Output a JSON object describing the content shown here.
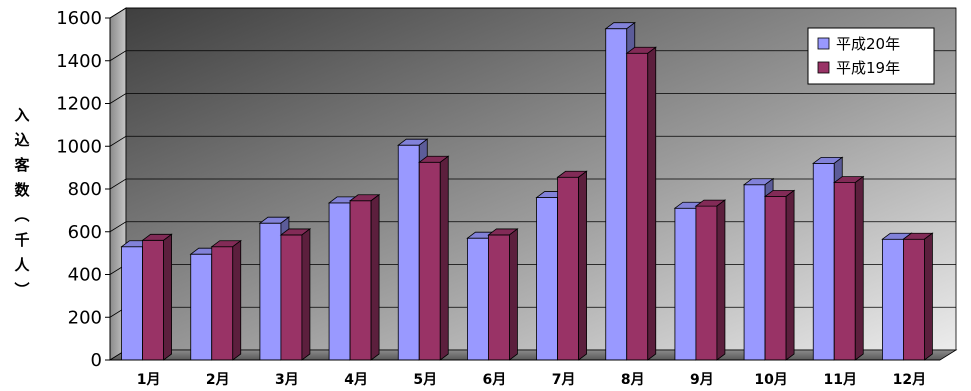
{
  "chart_data": {
    "type": "bar",
    "ylabel": "入込客数（千人）",
    "categories": [
      "1月",
      "2月",
      "3月",
      "4月",
      "5月",
      "6月",
      "7月",
      "8月",
      "9月",
      "10月",
      "11月",
      "12月"
    ],
    "series": [
      {
        "name": "平成20年",
        "color": "#9999ff",
        "values": [
          530,
          495,
          640,
          735,
          1005,
          570,
          760,
          1550,
          710,
          820,
          920,
          565
        ]
      },
      {
        "name": "平成19年",
        "color": "#993366",
        "values": [
          560,
          530,
          585,
          745,
          925,
          585,
          855,
          1435,
          720,
          765,
          830,
          565
        ]
      }
    ],
    "ylim": [
      0,
      1600
    ],
    "yticks": [
      0,
      200,
      400,
      600,
      800,
      1000,
      1200,
      1400,
      1600
    ],
    "grid": true,
    "legend_position": "top-right"
  }
}
